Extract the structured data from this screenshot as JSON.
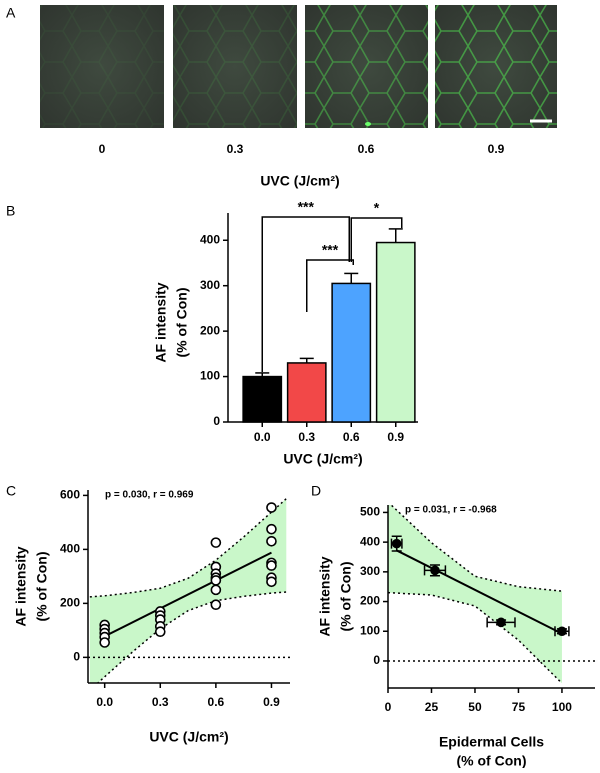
{
  "image_panel": {
    "panel_label": "A",
    "image_labels": [
      "0",
      "0.3",
      "0.6",
      "0.9"
    ],
    "xlabel": "UVC (J/cm²)"
  },
  "chart_data": [
    {
      "type": "bar",
      "panel_label": "B",
      "categories": [
        "0.0",
        "0.3",
        "0.6",
        "0.9"
      ],
      "values": [
        100,
        130,
        305,
        395
      ],
      "errors": [
        8,
        10,
        22,
        30
      ],
      "colors": [
        "#000000",
        "#f24848",
        "#4da3ff",
        "#c9f7c9"
      ],
      "ylim": [
        0,
        460
      ],
      "yticks": [
        0,
        100,
        200,
        300,
        400
      ],
      "xlabel": "UVC (J/cm²)",
      "ylabel": [
        "AF intensity",
        "(% of Con)"
      ],
      "annotations": [
        "***",
        "***",
        "*"
      ]
    },
    {
      "type": "scatter",
      "panel_label": "C",
      "annotation": "p = 0.030, r = 0.969",
      "series": [
        {
          "x": [
            0,
            0,
            0,
            0,
            0,
            0.3,
            0.3,
            0.3,
            0.3,
            0.3,
            0.6,
            0.6,
            0.6,
            0.6,
            0.6,
            0.6,
            0.6,
            0.9,
            0.9,
            0.9,
            0.9,
            0.9,
            0.9,
            0.9
          ],
          "values": [
            120,
            105,
            90,
            75,
            55,
            170,
            155,
            140,
            115,
            95,
            425,
            335,
            310,
            295,
            285,
            250,
            195,
            555,
            475,
            430,
            350,
            340,
            295,
            280
          ],
          "color": "#000000"
        }
      ],
      "fit": {
        "x": [
          0,
          0.9
        ],
        "y": [
          78,
          388
        ]
      },
      "band": {
        "x": [
          -0.08,
          0,
          0.15,
          0.3,
          0.45,
          0.6,
          0.75,
          0.9,
          0.98
        ],
        "upper": [
          224,
          228,
          240,
          256,
          293,
          360,
          446,
          538,
          588
        ],
        "lower": [
          -122,
          -72,
          20,
          106,
          173,
          210,
          226,
          238,
          242
        ],
        "color": "#c9f7c9"
      },
      "xlim": [
        -0.09,
        1.0
      ],
      "xticks": [
        {
          "value": 0,
          "label": "0.0"
        },
        0.3,
        0.6,
        0.9
      ],
      "ylim": [
        -95,
        620
      ],
      "yticks": [
        0,
        200,
        400,
        600
      ],
      "xlabel": "UVC (J/cm²)",
      "ylabel": [
        "AF intensity",
        "(% of Con)"
      ],
      "zero_line": true
    },
    {
      "type": "scatter",
      "panel_label": "D",
      "annotation": "p = 0.031, r = -0.968",
      "series": [
        {
          "x": [
            5,
            27,
            65,
            100
          ],
          "xerr": [
            3,
            6,
            8,
            4
          ],
          "values": [
            395,
            305,
            130,
            100
          ],
          "yerr": [
            25,
            18,
            8,
            8
          ],
          "color": "#000000",
          "filled": true
        }
      ],
      "fit": {
        "x": [
          5,
          100
        ],
        "y": [
          372,
          92
        ]
      },
      "band": {
        "x": [
          0,
          25,
          50,
          75,
          100
        ],
        "upper": [
          535,
          398,
          285,
          250,
          235
        ],
        "lower": [
          230,
          222,
          185,
          70,
          -75
        ],
        "color": "#c9f7c9"
      },
      "xlim": [
        0,
        119
      ],
      "xticks": [
        0,
        25,
        50,
        75,
        100
      ],
      "ylim": [
        -91,
        525
      ],
      "yticks": [
        0,
        100,
        200,
        300,
        400,
        500
      ],
      "xlabel": [
        "Epidermal Cells",
        "(% of Con)"
      ],
      "ylabel": [
        "AF intensity",
        "(% of Con)"
      ],
      "zero_line": true
    }
  ]
}
